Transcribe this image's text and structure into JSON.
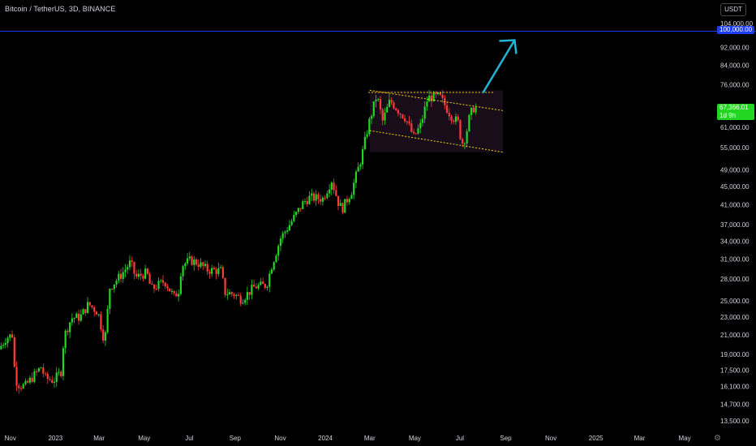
{
  "header": {
    "title": "Bitcoin / TetherUS, 3D, BINANCE"
  },
  "currency_button": "USDT",
  "price_tags": {
    "level_label": "100,000.00",
    "current_price": "67,366.01",
    "countdown": "1d 9h"
  },
  "settings_icon": "gear-icon",
  "colors": {
    "background": "#000000",
    "up_candle": "#22d622",
    "down_candle": "#ff3b3b",
    "level_line": "#1e3df0",
    "channel_line": "#f5d20a",
    "channel_fill": "#1a0d1a",
    "arrow": "#22b4d6",
    "axis_text": "#d1d4dc"
  },
  "chart_data": {
    "type": "candlestick",
    "title": "Bitcoin / TetherUS, 3D, BINANCE",
    "y_scale": "log",
    "ylim": [
      13000,
      108000
    ],
    "xlim": [
      "2022-10-18",
      "2025-06-05"
    ],
    "y_ticks": [
      "104,000.00",
      "100,000.00",
      "92,000.00",
      "84,000.00",
      "76,000.00",
      "67,366.01",
      "61,000.00",
      "55,000.00",
      "49,000.00",
      "45,000.00",
      "41,000.00",
      "37,000.00",
      "34,000.00",
      "31,000.00",
      "28,000.00",
      "25,000.00",
      "23,000.00",
      "21,000.00",
      "19,000.00",
      "17,500.00",
      "16,100.00",
      "14,700.00",
      "13,500.00"
    ],
    "x_ticks": [
      {
        "label": "Nov",
        "date": "2022-11-01"
      },
      {
        "label": "2023",
        "date": "2023-01-01"
      },
      {
        "label": "Mar",
        "date": "2023-03-01"
      },
      {
        "label": "May",
        "date": "2023-05-01"
      },
      {
        "label": "Jul",
        "date": "2023-07-01"
      },
      {
        "label": "Sep",
        "date": "2023-09-01"
      },
      {
        "label": "Nov",
        "date": "2023-11-01"
      },
      {
        "label": "2024",
        "date": "2024-01-01"
      },
      {
        "label": "Mar",
        "date": "2024-03-01"
      },
      {
        "label": "May",
        "date": "2024-05-01"
      },
      {
        "label": "Jul",
        "date": "2024-07-01"
      },
      {
        "label": "Sep",
        "date": "2024-09-01"
      },
      {
        "label": "Nov",
        "date": "2024-11-01"
      },
      {
        "label": "2025",
        "date": "2025-01-01"
      },
      {
        "label": "Mar",
        "date": "2025-03-01"
      },
      {
        "label": "May",
        "date": "2025-05-01"
      }
    ],
    "close_path": [
      [
        "2022-10-18",
        19500
      ],
      [
        "2022-10-28",
        20700
      ],
      [
        "2022-11-05",
        21000
      ],
      [
        "2022-11-09",
        16800
      ],
      [
        "2022-11-13",
        16300
      ],
      [
        "2022-11-22",
        16100
      ],
      [
        "2022-12-04",
        17000
      ],
      [
        "2022-12-14",
        17800
      ],
      [
        "2022-12-20",
        16800
      ],
      [
        "2022-12-31",
        16600
      ],
      [
        "2023-01-10",
        17400
      ],
      [
        "2023-01-14",
        20800
      ],
      [
        "2023-01-24",
        22900
      ],
      [
        "2023-02-05",
        23000
      ],
      [
        "2023-02-16",
        24600
      ],
      [
        "2023-03-01",
        23600
      ],
      [
        "2023-03-10",
        20200
      ],
      [
        "2023-03-17",
        26800
      ],
      [
        "2023-03-31",
        28400
      ],
      [
        "2023-04-14",
        30500
      ],
      [
        "2023-04-21",
        28200
      ],
      [
        "2023-05-06",
        28900
      ],
      [
        "2023-05-12",
        26500
      ],
      [
        "2023-05-30",
        27700
      ],
      [
        "2023-06-12",
        25500
      ],
      [
        "2023-06-18",
        26400
      ],
      [
        "2023-06-22",
        30000
      ],
      [
        "2023-07-04",
        30800
      ],
      [
        "2023-07-14",
        30400
      ],
      [
        "2023-07-27",
        29300
      ],
      [
        "2023-08-14",
        29200
      ],
      [
        "2023-08-20",
        26100
      ],
      [
        "2023-09-01",
        25900
      ],
      [
        "2023-09-11",
        25200
      ],
      [
        "2023-09-29",
        26900
      ],
      [
        "2023-10-15",
        27100
      ],
      [
        "2023-10-22",
        30000
      ],
      [
        "2023-11-03",
        34500
      ],
      [
        "2023-11-15",
        37000
      ],
      [
        "2023-12-04",
        41500
      ],
      [
        "2023-12-12",
        42500
      ],
      [
        "2023-12-30",
        42300
      ],
      [
        "2024-01-11",
        46500
      ],
      [
        "2024-01-20",
        41500
      ],
      [
        "2024-01-25",
        40000
      ],
      [
        "2024-02-07",
        44000
      ],
      [
        "2024-02-20",
        52000
      ],
      [
        "2024-03-01",
        62000
      ],
      [
        "2024-03-12",
        72000
      ],
      [
        "2024-03-20",
        63000
      ],
      [
        "2024-03-30",
        70000
      ],
      [
        "2024-04-12",
        66000
      ],
      [
        "2024-04-20",
        64000
      ],
      [
        "2024-05-01",
        58000
      ],
      [
        "2024-05-10",
        61500
      ],
      [
        "2024-05-20",
        71000
      ],
      [
        "2024-06-05",
        71500
      ],
      [
        "2024-06-20",
        65000
      ],
      [
        "2024-06-30",
        62500
      ],
      [
        "2024-07-05",
        56000
      ],
      [
        "2024-07-10",
        58000
      ],
      [
        "2024-07-16",
        65000
      ],
      [
        "2024-07-21",
        67366
      ]
    ],
    "candles_per_day": 0.333,
    "annotations": {
      "horizontal_level": 100000,
      "channel": {
        "start_date": "2024-03-01",
        "end_date": "2024-08-28",
        "upper": [
          73800,
          66500
        ],
        "lower": [
          60000,
          53700
        ]
      },
      "top_dotted_line": {
        "start_date": "2024-02-28",
        "end_date": "2024-08-16",
        "price": 73000
      },
      "shaded_box": {
        "start_date": "2024-03-01",
        "end_date": "2024-08-28",
        "high": 73800,
        "low": 53700
      },
      "arrow": {
        "from_date": "2024-08-01",
        "from_price": 72800,
        "to_date": "2024-09-13",
        "to_price": 95500
      }
    }
  }
}
